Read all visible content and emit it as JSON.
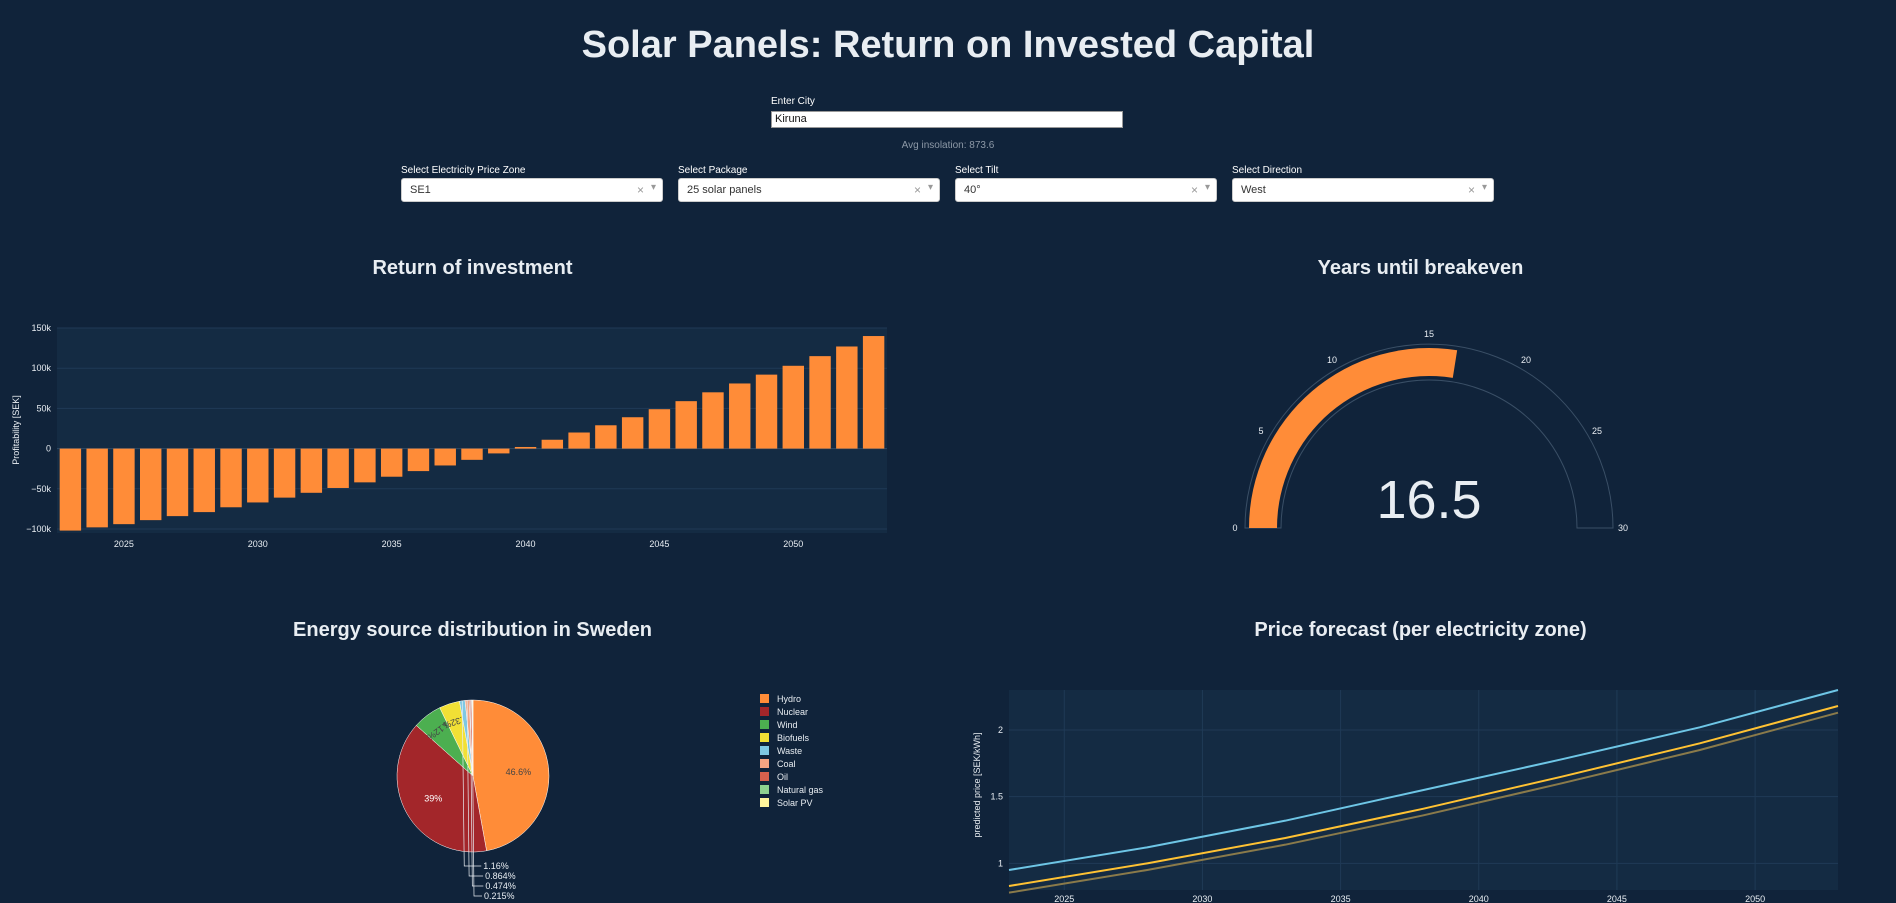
{
  "page": {
    "title": "Solar Panels: Return on Invested Capital"
  },
  "city": {
    "label": "Enter City",
    "value": "Kiruna"
  },
  "insolation": "Avg insolation: 873.6",
  "dropdowns": [
    {
      "label": "Select Electricity Price Zone",
      "value": "SE1"
    },
    {
      "label": "Select Package",
      "value": "25 solar panels"
    },
    {
      "label": "Select Tilt",
      "value": "40°"
    },
    {
      "label": "Select Direction",
      "value": "West"
    }
  ],
  "chart_data": [
    {
      "type": "bar",
      "title": "Return of investment",
      "ylabel": "Profitability [SEK]",
      "xlabel": "",
      "x": [
        2023,
        2024,
        2025,
        2026,
        2027,
        2028,
        2029,
        2030,
        2031,
        2032,
        2033,
        2034,
        2035,
        2036,
        2037,
        2038,
        2039,
        2040,
        2041,
        2042,
        2043,
        2044,
        2045,
        2046,
        2047,
        2048,
        2049,
        2050,
        2051,
        2052,
        2053
      ],
      "values": [
        -102000,
        -98000,
        -94000,
        -89000,
        -84000,
        -79000,
        -73000,
        -67000,
        -61000,
        -55000,
        -49000,
        -42000,
        -35000,
        -28000,
        -21000,
        -14000,
        -6000,
        2000,
        11000,
        20000,
        29000,
        39000,
        49000,
        59000,
        70000,
        81000,
        92000,
        103000,
        115000,
        127000,
        140000
      ],
      "xticks": [
        "2025",
        "2030",
        "2035",
        "2040",
        "2045",
        "2050"
      ],
      "yticks": [
        "150k",
        "100k",
        "50k",
        "0",
        "−50k",
        "−100k"
      ],
      "ylim": [
        -105000,
        150000
      ],
      "color": "#ff8c38"
    },
    {
      "type": "gauge",
      "title": "Years until breakeven",
      "value": 16.5,
      "value_label": "16.5",
      "range": [
        0,
        30
      ],
      "ticks": [
        "0",
        "5",
        "10",
        "15",
        "20",
        "25",
        "30"
      ],
      "color": "#ff8c38"
    },
    {
      "type": "pie",
      "title": "Energy source distribution in Sweden",
      "slices": [
        {
          "name": "Hydro",
          "value": 46.6,
          "label": "46.6%",
          "color": "#ff8c38"
        },
        {
          "name": "Nuclear",
          "value": 39,
          "label": "39%",
          "color": "#a3262a"
        },
        {
          "name": "Wind",
          "value": 6.12,
          "label": "6.12%",
          "color": "#4caf50"
        },
        {
          "name": "Biofuels",
          "value": 4.32,
          "label": "4.32%",
          "color": "#f2e035"
        },
        {
          "name": "Waste",
          "value": 1.16,
          "label": "1.16%",
          "color": "#7ec8e3"
        },
        {
          "name": "Coal",
          "value": 0.864,
          "label": "0.864%",
          "color": "#f4a582"
        },
        {
          "name": "Oil",
          "value": 0.474,
          "label": "0.474%",
          "color": "#d6604d"
        },
        {
          "name": "Natural gas",
          "value": 0.215,
          "label": "0.215%",
          "color": "#8fd18f"
        },
        {
          "name": "Solar PV",
          "value": 0.1,
          "label": "",
          "color": "#fff59d"
        }
      ],
      "legend": [
        "Hydro",
        "Nuclear",
        "Wind",
        "Biofuels",
        "Waste",
        "Coal",
        "Oil",
        "Natural gas",
        "Solar PV"
      ]
    },
    {
      "type": "line",
      "title": "Price forecast (per electricity zone)",
      "ylabel": "predicted price [SEK/kWh]",
      "xticks": [
        "2025",
        "2030",
        "2035",
        "2040",
        "2045",
        "2050"
      ],
      "yticks": [
        "2",
        "1.5",
        "1"
      ],
      "xlim": [
        2023,
        2053
      ],
      "ylim": [
        0.8,
        2.3
      ],
      "x": [
        2023,
        2028,
        2033,
        2038,
        2043,
        2048,
        2053
      ],
      "series": [
        {
          "values": [
            0.95,
            1.12,
            1.32,
            1.55,
            1.78,
            2.02,
            2.3
          ],
          "color": "#6ec6e6"
        },
        {
          "values": [
            0.83,
            1.0,
            1.19,
            1.41,
            1.65,
            1.9,
            2.18
          ],
          "color": "#ffc233"
        },
        {
          "values": [
            0.78,
            0.95,
            1.14,
            1.36,
            1.6,
            1.85,
            2.13
          ],
          "color": "#8a7a4a"
        }
      ]
    }
  ]
}
